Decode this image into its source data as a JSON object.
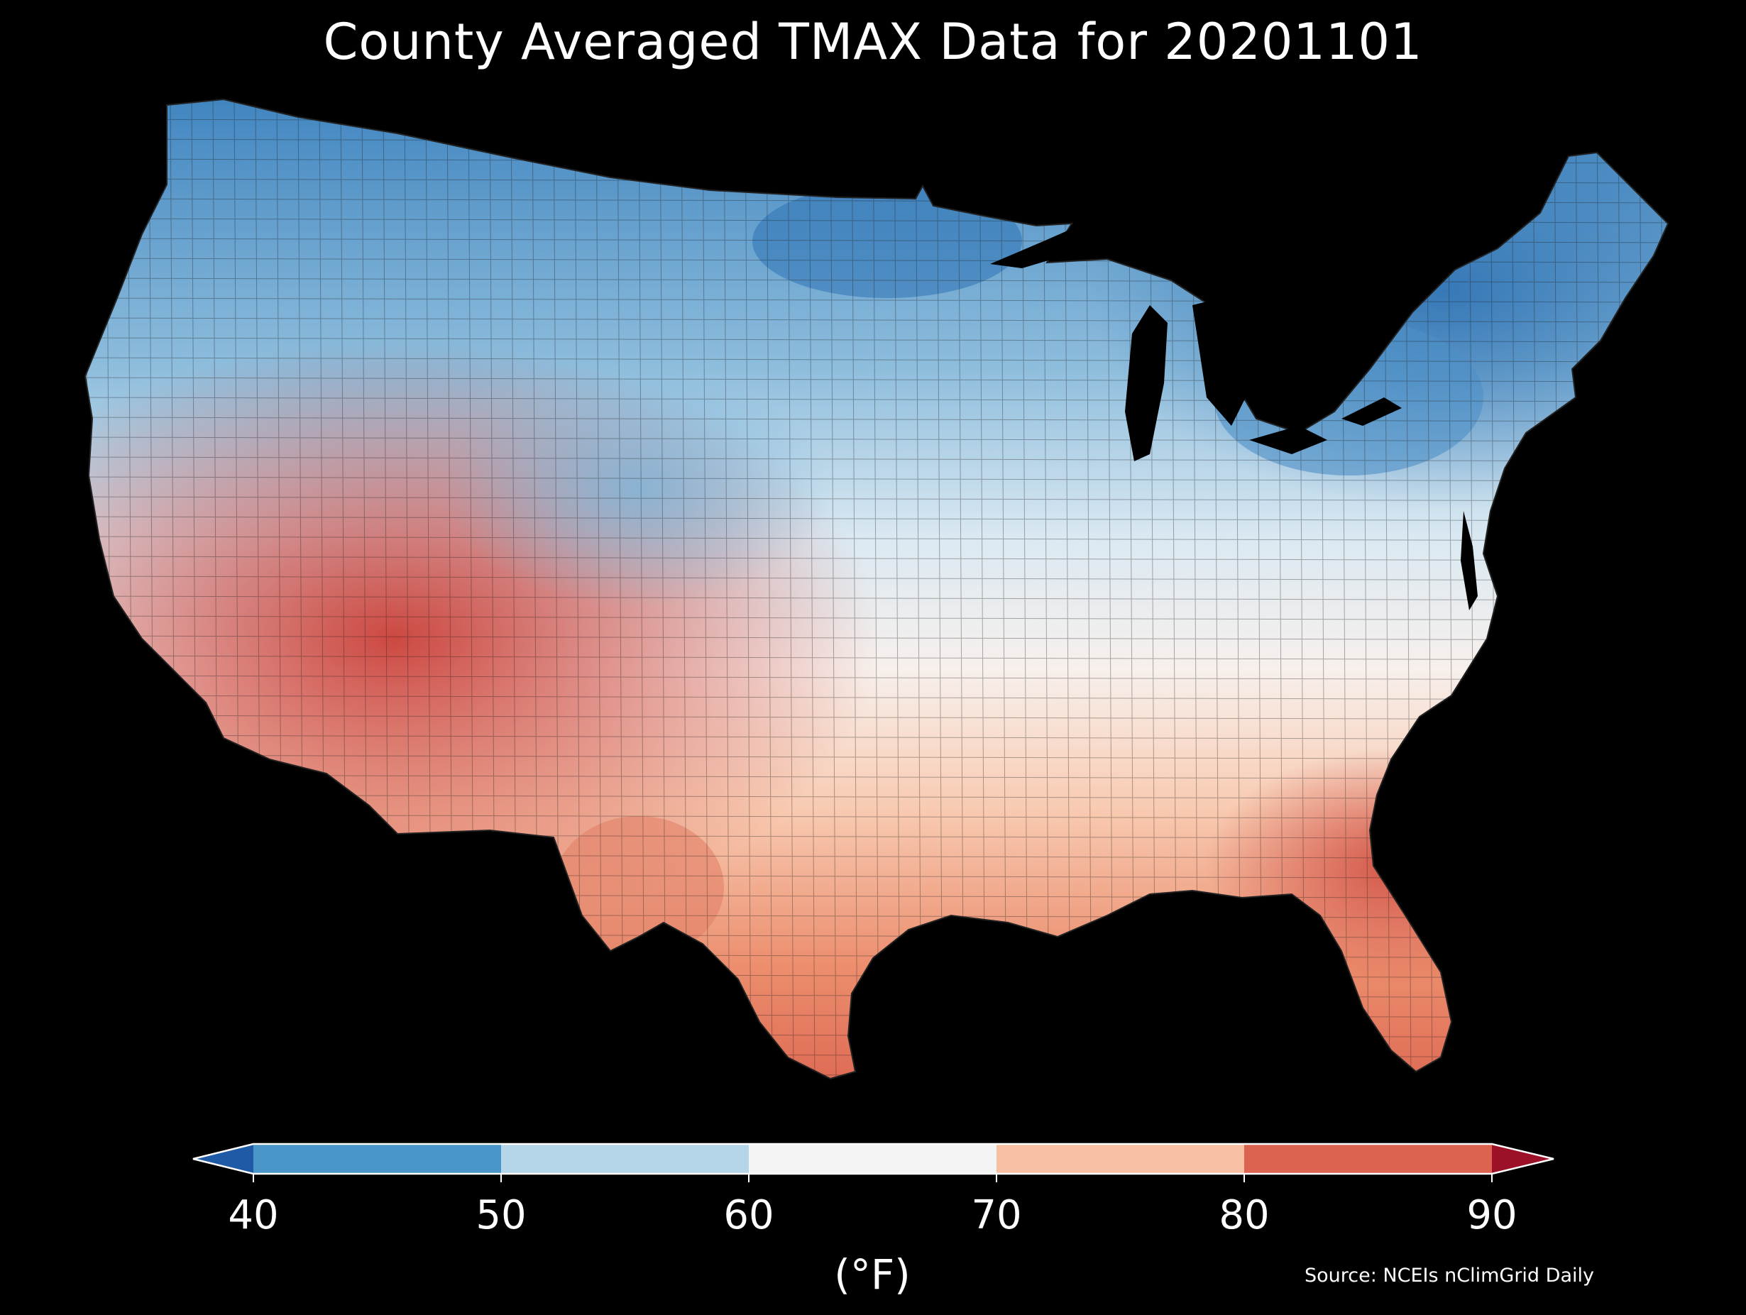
{
  "title": "County Averaged TMAX Data for 20201101",
  "map": {
    "region": "Contiguous United States (county level)",
    "variable": "TMAX",
    "date": "20201101"
  },
  "colorbar": {
    "ticks": [
      "40",
      "50",
      "60",
      "70",
      "80",
      "90"
    ],
    "unit_label": "(°F)",
    "bins": [
      {
        "range": "<40",
        "color": "#1f5aa6"
      },
      {
        "range": "40-50",
        "color": "#4a96c8"
      },
      {
        "range": "50-60",
        "color": "#b5d6e8"
      },
      {
        "range": "60-70",
        "color": "#f4f4f4"
      },
      {
        "range": "70-80",
        "color": "#f7c0a3"
      },
      {
        "range": "80-90",
        "color": "#db6350"
      },
      {
        "range": ">90",
        "color": "#9c1127"
      }
    ]
  },
  "source": "Source: NCEIs nClimGrid Daily"
}
